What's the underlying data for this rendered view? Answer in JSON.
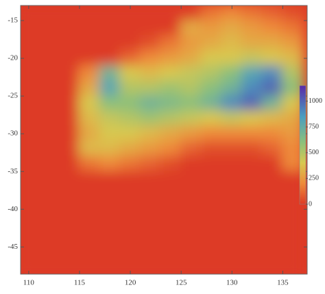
{
  "chart_data": {
    "type": "heatmap",
    "x": [
      110,
      112,
      114,
      116,
      118,
      120,
      122,
      124,
      126,
      128,
      130,
      132,
      134,
      136
    ],
    "y": [
      -14,
      -16,
      -18,
      -20,
      -22,
      -24,
      -26,
      -28,
      -30,
      -32,
      -34,
      -36,
      -38,
      -40,
      -42,
      -44,
      -46,
      -48
    ],
    "z": [
      [
        0,
        0,
        0,
        0,
        0,
        0,
        0,
        0,
        0,
        150,
        200,
        150,
        100,
        50
      ],
      [
        0,
        0,
        0,
        0,
        0,
        0,
        0,
        0,
        300,
        250,
        300,
        250,
        200,
        150
      ],
      [
        0,
        0,
        0,
        0,
        0,
        0,
        50,
        150,
        250,
        300,
        350,
        300,
        300,
        250
      ],
      [
        0,
        0,
        0,
        0,
        0,
        100,
        200,
        250,
        300,
        400,
        400,
        450,
        400,
        350
      ],
      [
        0,
        0,
        0,
        200,
        700,
        400,
        350,
        400,
        450,
        500,
        600,
        800,
        900,
        500
      ],
      [
        0,
        0,
        0,
        300,
        800,
        500,
        500,
        550,
        500,
        600,
        700,
        900,
        1000,
        600
      ],
      [
        0,
        0,
        0,
        400,
        600,
        600,
        700,
        650,
        600,
        700,
        900,
        1000,
        700,
        400
      ],
      [
        0,
        0,
        0,
        350,
        450,
        500,
        550,
        500,
        450,
        400,
        450,
        400,
        350,
        300
      ],
      [
        0,
        0,
        0,
        300,
        400,
        400,
        350,
        300,
        250,
        200,
        200,
        200,
        200,
        250
      ],
      [
        0,
        0,
        0,
        350,
        350,
        300,
        250,
        200,
        100,
        50,
        50,
        50,
        100,
        200
      ],
      [
        0,
        0,
        0,
        150,
        200,
        150,
        100,
        50,
        0,
        0,
        0,
        0,
        0,
        200
      ],
      [
        0,
        0,
        0,
        0,
        0,
        0,
        0,
        0,
        0,
        0,
        0,
        0,
        0,
        0
      ],
      [
        0,
        0,
        0,
        0,
        0,
        0,
        0,
        0,
        0,
        0,
        0,
        0,
        0,
        0
      ],
      [
        0,
        0,
        0,
        0,
        0,
        0,
        0,
        0,
        0,
        0,
        0,
        0,
        0,
        0
      ],
      [
        0,
        0,
        0,
        0,
        0,
        0,
        0,
        0,
        0,
        0,
        0,
        0,
        0,
        0
      ],
      [
        0,
        0,
        0,
        0,
        0,
        0,
        0,
        0,
        0,
        0,
        0,
        0,
        0,
        0
      ],
      [
        0,
        0,
        0,
        0,
        0,
        0,
        0,
        0,
        0,
        0,
        0,
        0,
        0,
        0
      ],
      [
        0,
        0,
        0,
        0,
        0,
        0,
        0,
        0,
        0,
        0,
        0,
        0,
        0,
        0
      ]
    ],
    "xlim": [
      109.2,
      137.4
    ],
    "xticks": [
      110,
      115,
      120,
      125,
      130,
      135
    ],
    "ylim": [
      -48.6,
      -13
    ],
    "yticks": [
      -15,
      -20,
      -25,
      -30,
      -35,
      -40,
      -45
    ],
    "zlim": [
      0,
      1150
    ],
    "zticks": [
      0,
      250,
      500,
      750,
      1000
    ],
    "colorscale": [
      {
        "value": 0,
        "color": "#dd3b26"
      },
      {
        "value": 200,
        "color": "#ee8a3a"
      },
      {
        "value": 400,
        "color": "#d8c850"
      },
      {
        "value": 600,
        "color": "#8cc07a"
      },
      {
        "value": 850,
        "color": "#4a9ec0"
      },
      {
        "value": 1150,
        "color": "#5a2aa8"
      }
    ]
  }
}
